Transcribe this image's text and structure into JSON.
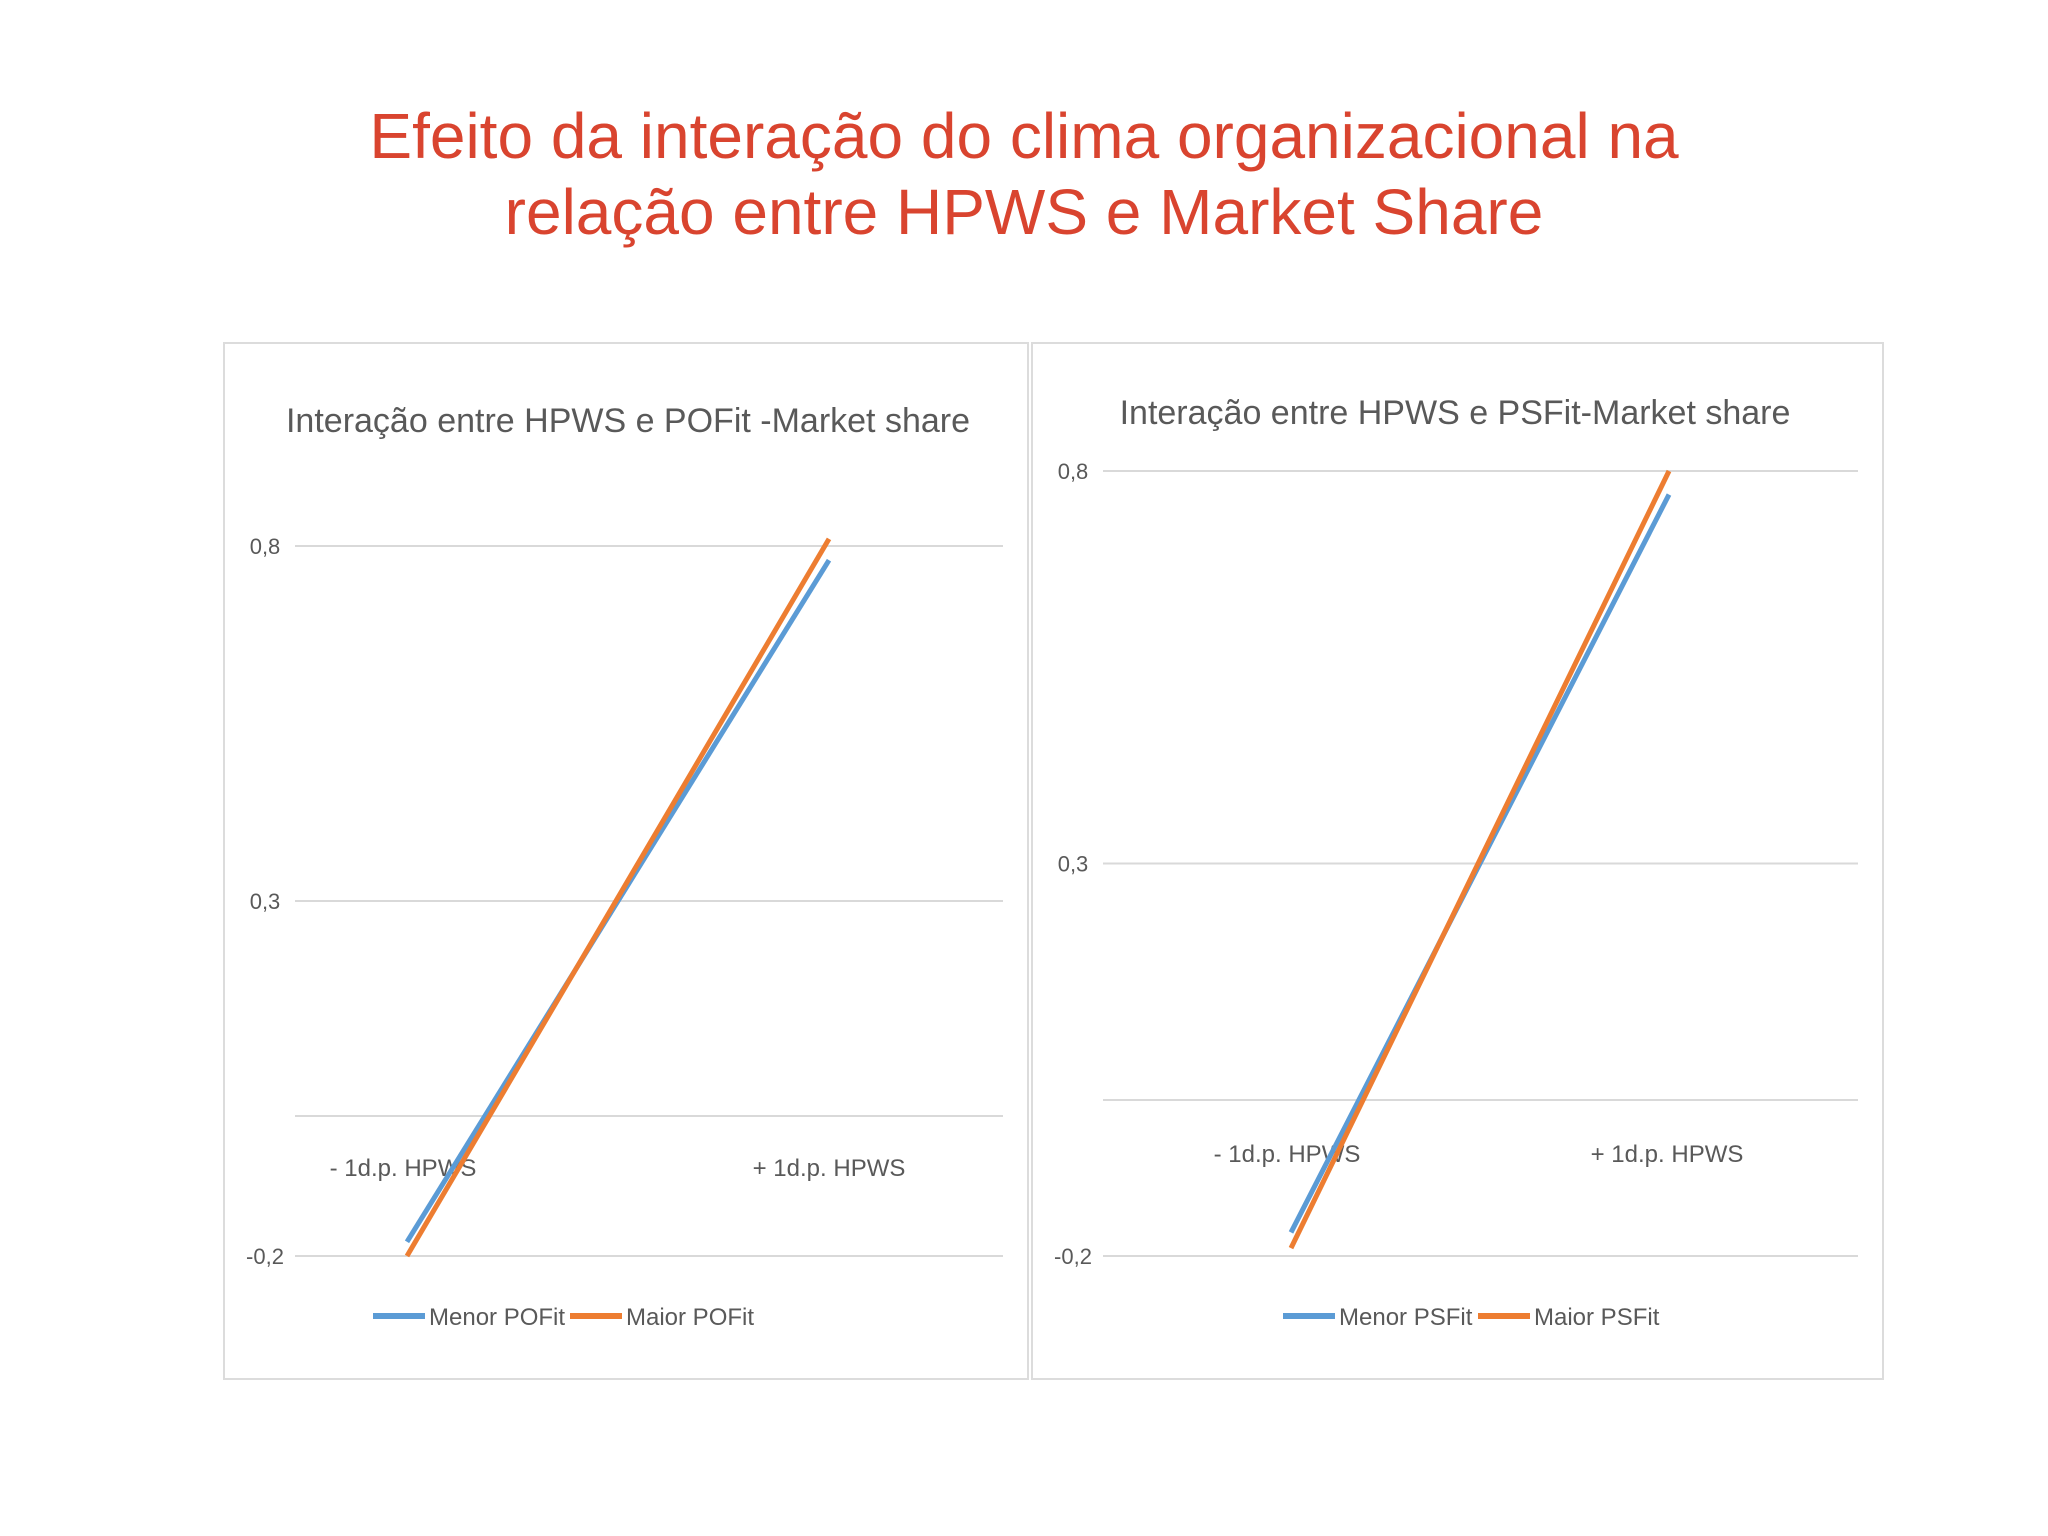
{
  "slide": {
    "title_line1": "Efeito da interação do clima organizacional na",
    "title_line2": "relação entre HPWS e Market Share"
  },
  "chart_data": [
    {
      "type": "line",
      "title": "Interação entre HPWS e POFit -Market share",
      "categories": [
        "- 1d.p. HPWS",
        "+ 1d.p. HPWS"
      ],
      "series": [
        {
          "name": "Menor POFit",
          "color": "#5b9bd5",
          "values": [
            -0.18,
            0.78
          ]
        },
        {
          "name": "Maior POFit",
          "color": "#ed7d31",
          "values": [
            -0.2,
            0.81
          ]
        }
      ],
      "y_ticks": [
        "0,8",
        "0,3",
        "-0,2"
      ],
      "y_tick_values": [
        0.8,
        0.3,
        -0.2
      ],
      "ylim": [
        -0.2,
        0.8
      ],
      "grid": true,
      "legend": "bottom"
    },
    {
      "type": "line",
      "title": "Interação entre HPWS e PSFit-Market share",
      "categories": [
        "- 1d.p. HPWS",
        "+ 1d.p. HPWS"
      ],
      "series": [
        {
          "name": "Menor PSFit",
          "color": "#5b9bd5",
          "values": [
            -0.17,
            0.77
          ]
        },
        {
          "name": "Maior PSFit",
          "color": "#ed7d31",
          "values": [
            -0.19,
            0.8
          ]
        }
      ],
      "y_ticks": [
        "0,8",
        "0,3",
        "-0,2"
      ],
      "y_tick_values": [
        0.8,
        0.3,
        -0.2
      ],
      "ylim": [
        -0.2,
        0.8
      ],
      "grid": true,
      "legend": "bottom"
    }
  ]
}
